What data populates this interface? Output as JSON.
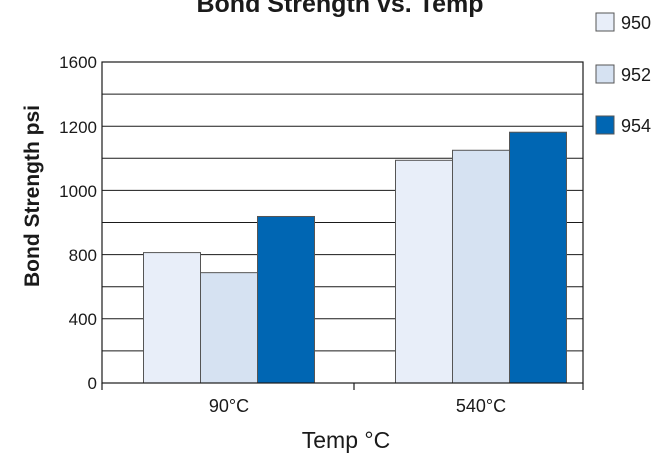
{
  "chart_data": {
    "type": "bar",
    "title": "Bond Strength vs. Temp",
    "xlabel": "Temp °C",
    "ylabel": "Bond Strength  psi",
    "categories": [
      "90°C",
      "540°C"
    ],
    "series": [
      {
        "name": "950",
        "values": [
          650,
          1110
        ],
        "color": "#e8eef9"
      },
      {
        "name": "952",
        "values": [
          550,
          1160
        ],
        "color": "#d6e2f2"
      },
      {
        "name": "954",
        "values": [
          830,
          1250
        ],
        "color": "#0066b3"
      }
    ],
    "ylim": [
      0,
      1600
    ],
    "yticks": [
      {
        "value": 0,
        "label": "0"
      },
      {
        "value": 400,
        "label": "400"
      },
      {
        "value": 800,
        "label": "800"
      },
      {
        "value": 1000,
        "label": "1000"
      },
      {
        "value": 1200,
        "label": "1200"
      },
      {
        "value": 1600,
        "label": "1600"
      }
    ],
    "grid": true,
    "legend_position": "top-right"
  }
}
